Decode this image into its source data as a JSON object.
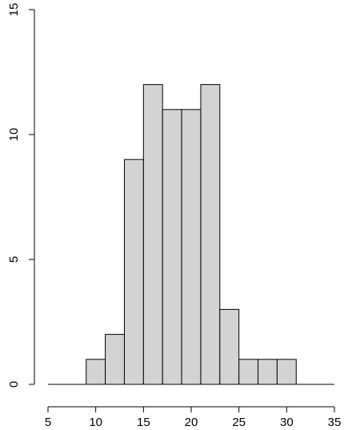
{
  "chart_data": {
    "type": "histogram",
    "bins": [
      9,
      11,
      13,
      15,
      17,
      19,
      21,
      23,
      25,
      27,
      29,
      31
    ],
    "counts": [
      1,
      2,
      9,
      12,
      11,
      11,
      12,
      3,
      1,
      1,
      1
    ],
    "color": "#d3d3d3",
    "xlim": [
      5,
      35
    ],
    "xticks": [
      5,
      10,
      15,
      20,
      25,
      30,
      35
    ],
    "ylim": [
      0,
      15
    ],
    "yticks": [
      0,
      5,
      10,
      15
    ]
  }
}
